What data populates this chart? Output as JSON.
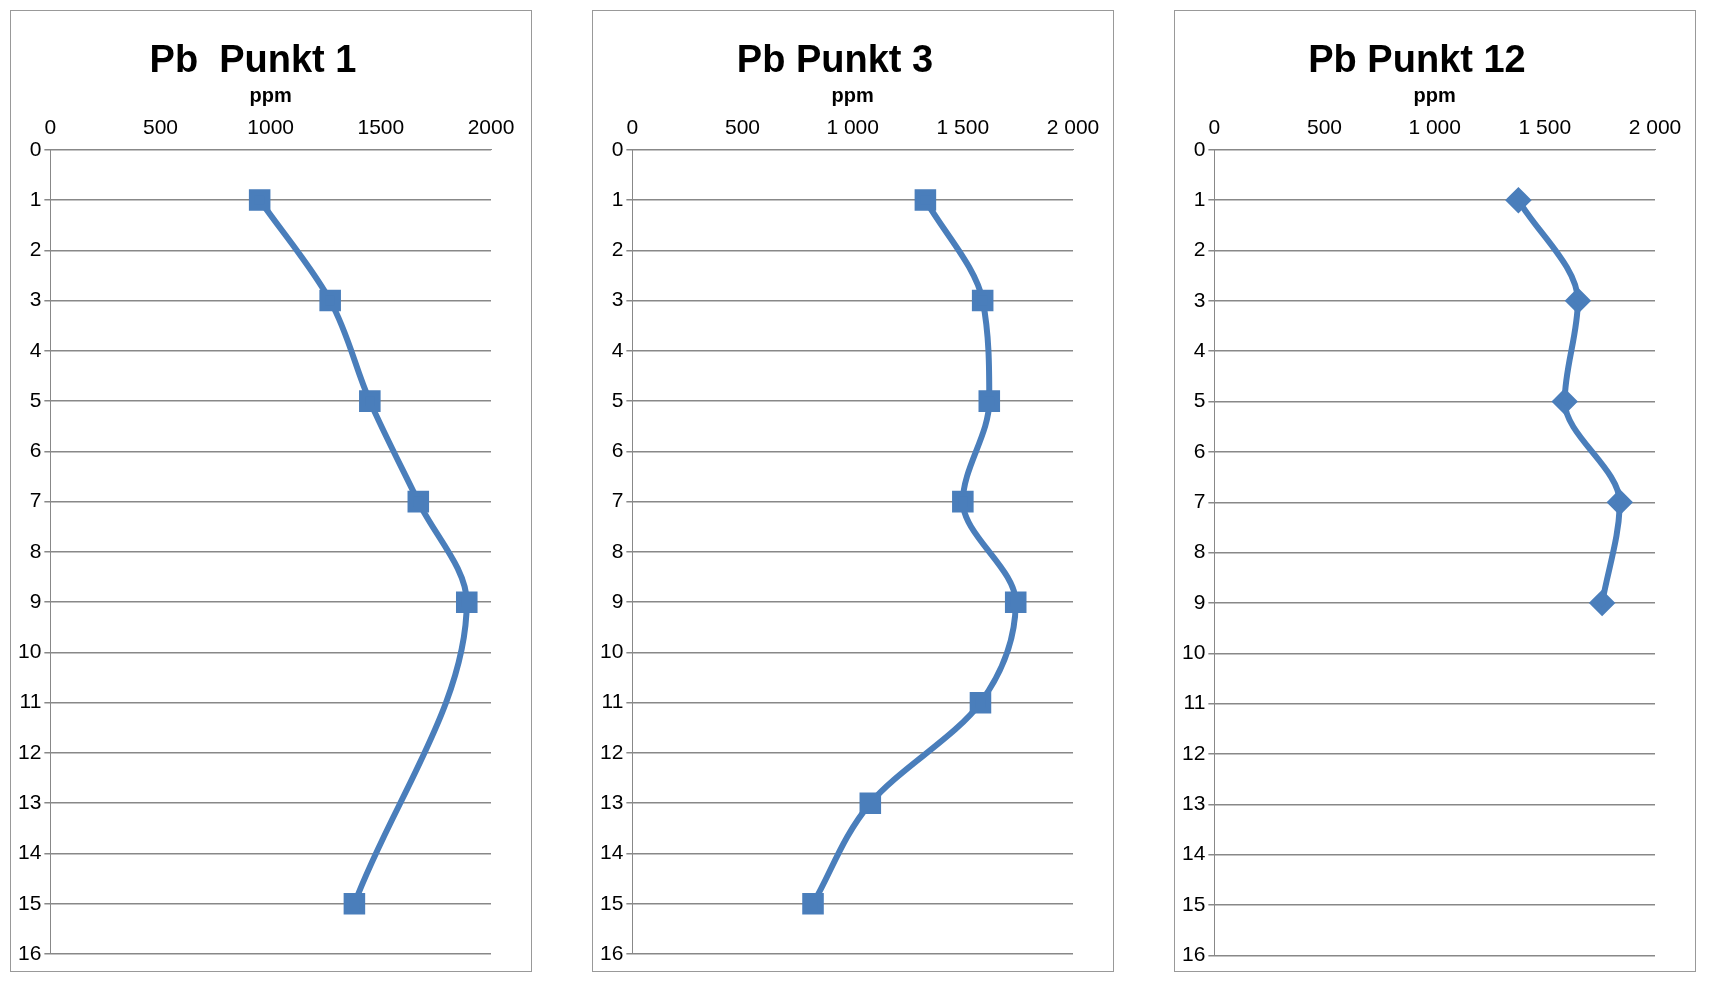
{
  "chart_data": [
    {
      "type": "line",
      "title": "Pb  Punkt 1",
      "xlabel": "ppm",
      "xlim": [
        0,
        2000
      ],
      "xticks": [
        0,
        500,
        1000,
        1500,
        2000
      ],
      "ylim": [
        16,
        0
      ],
      "yticks": [
        0,
        1,
        2,
        3,
        4,
        5,
        6,
        7,
        8,
        9,
        10,
        11,
        12,
        13,
        14,
        15,
        16
      ],
      "grid": "y",
      "marker": "square",
      "series": [
        {
          "color": "#4a7ebb",
          "x": [
            950,
            1270,
            1450,
            1670,
            1890,
            1380
          ],
          "values": [
            1,
            3,
            5,
            7,
            9,
            15
          ]
        }
      ]
    },
    {
      "type": "line",
      "title": "Pb Punkt 3",
      "xlabel": "ppm",
      "xlim": [
        0,
        2000
      ],
      "xticks": [
        0,
        500,
        {
          "value": 1000,
          "label": "1 000"
        },
        {
          "value": 1500,
          "label": "1 500"
        },
        {
          "value": 2000,
          "label": "2 000"
        }
      ],
      "ylim": [
        16,
        0
      ],
      "yticks": [
        0,
        1,
        2,
        3,
        4,
        5,
        6,
        7,
        8,
        9,
        10,
        11,
        12,
        13,
        14,
        15,
        16
      ],
      "grid": "y",
      "marker": "square",
      "series": [
        {
          "color": "#4a7ebb",
          "x": [
            1330,
            1590,
            1620,
            1500,
            1740,
            1580,
            1080,
            820
          ],
          "values": [
            1,
            3,
            5,
            7,
            9,
            11,
            13,
            15
          ]
        }
      ]
    },
    {
      "type": "line",
      "title": "Pb Punkt 12",
      "xlabel": "ppm",
      "xlim": [
        0,
        2000
      ],
      "xticks": [
        0,
        500,
        {
          "value": 1000,
          "label": "1 000"
        },
        {
          "value": 1500,
          "label": "1 500"
        },
        {
          "value": 2000,
          "label": "2 000"
        }
      ],
      "ylim": [
        16,
        0
      ],
      "yticks": [
        0,
        1,
        2,
        3,
        4,
        5,
        6,
        7,
        8,
        9,
        10,
        11,
        12,
        13,
        14,
        15,
        16
      ],
      "grid": "y",
      "marker": "diamond",
      "series": [
        {
          "color": "#4a7ebb",
          "x": [
            1380,
            1650,
            1590,
            1840,
            1760
          ],
          "values": [
            1,
            3,
            5,
            7,
            9
          ]
        }
      ]
    }
  ]
}
